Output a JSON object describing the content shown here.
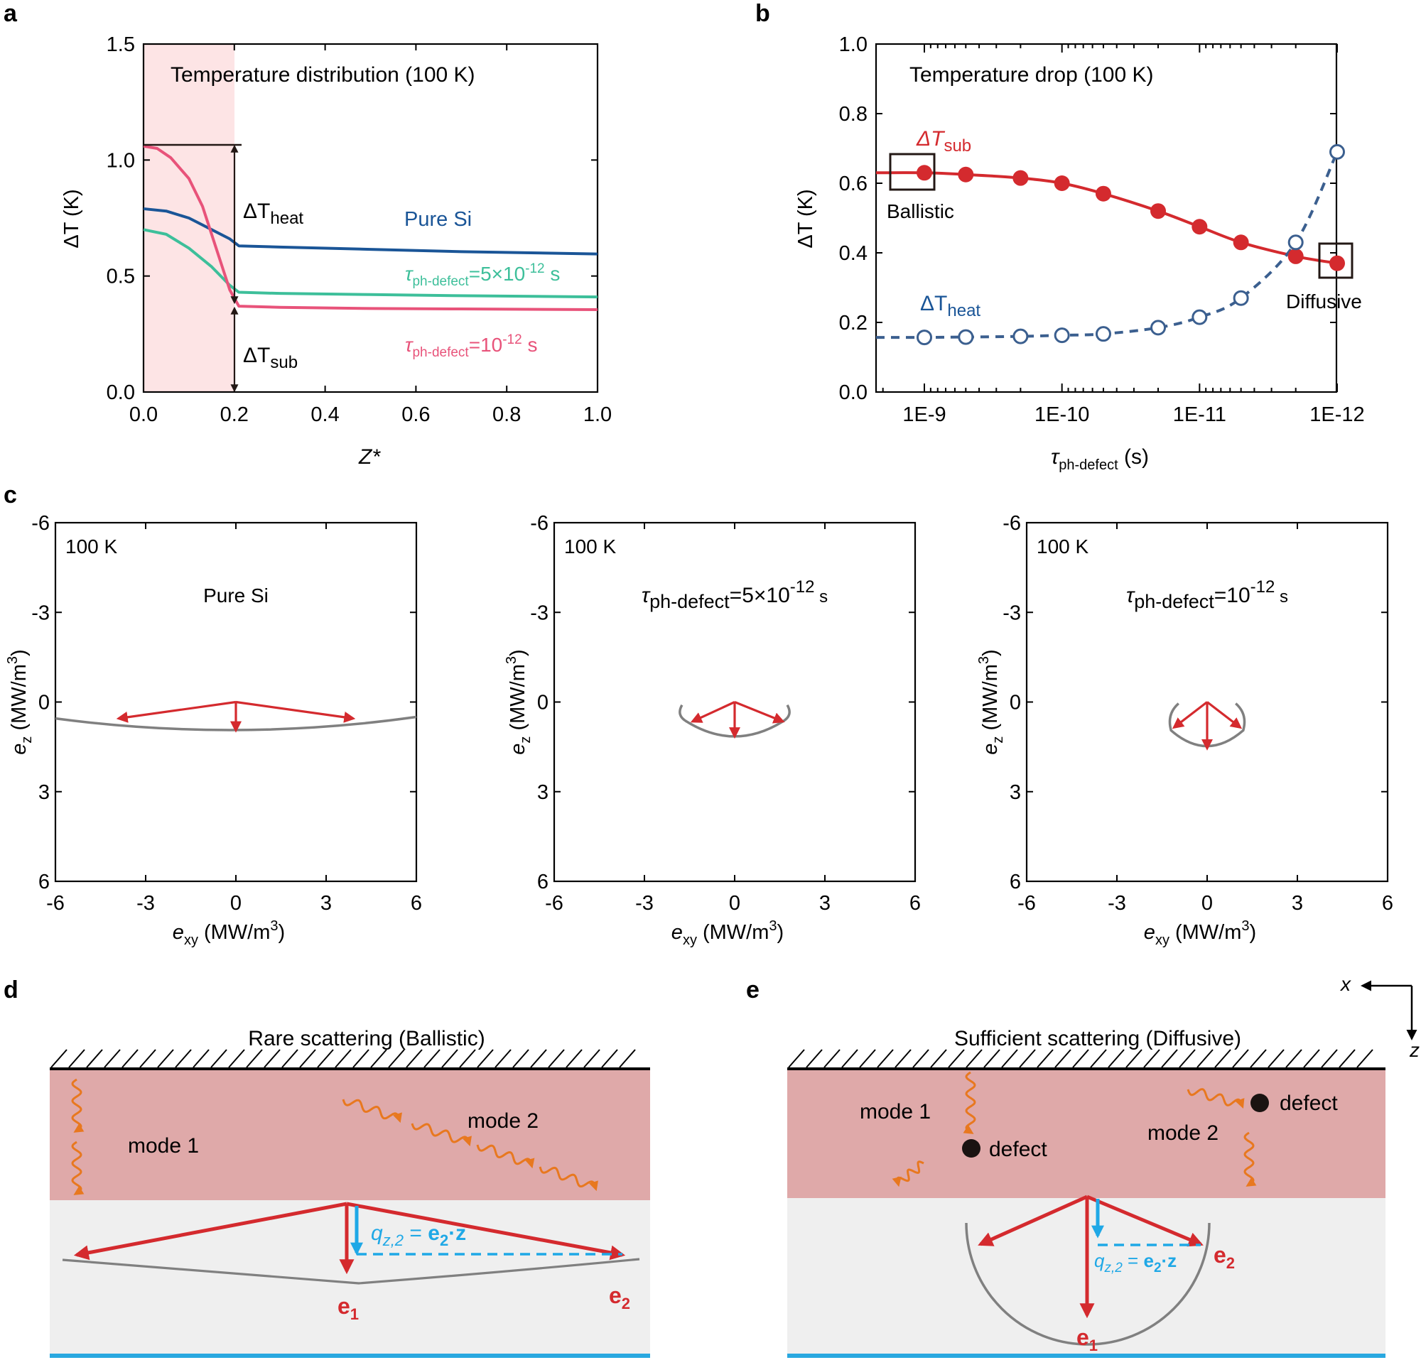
{
  "panels": {
    "a": "a",
    "b": "b",
    "c": "c",
    "d": "d",
    "e": "e"
  },
  "colors": {
    "pure_si": "#1a5597",
    "tau5": "#3dbf9a",
    "tau1": "#e8537a",
    "red": "#d42a2e",
    "blue_dash": "#3b5f8f",
    "heater": "#fde4e5",
    "layer": "#dfa9a9",
    "substrate": "#efefef",
    "bottom_line": "#29a8e0",
    "phonon": "#e8781f",
    "qz": "#1fa8e6",
    "dispersion": "#808080"
  },
  "panel_a": {
    "title": "Temperature distribution (100 K)",
    "ylabel": "ΔT (K)",
    "xlabel": "Z*",
    "xticks": [
      "0.0",
      "0.2",
      "0.4",
      "0.6",
      "0.8",
      "1.0"
    ],
    "yticks": [
      "0.0",
      "0.5",
      "1.0",
      "1.5"
    ],
    "labels": {
      "dT_heat_main": "ΔT",
      "dT_heat_sub": "heat",
      "dT_sub_main": "ΔT",
      "dT_sub_sub": "sub",
      "pure_si": "Pure Si",
      "tau5_main": "τ",
      "tau5_sub": "ph-defect",
      "tau5_mid": "=5×10",
      "tau5_exp": "-12",
      "tau5_unit": " s",
      "tau1_main": "τ",
      "tau1_sub": "ph-defect",
      "tau1_mid": "=10",
      "tau1_exp": "-12",
      "tau1_unit": " s"
    }
  },
  "panel_b": {
    "title": "Temperature drop (100 K)",
    "ylabel": "ΔT (K)",
    "xlabel_main": "τ",
    "xlabel_sub": "ph-defect",
    "xlabel_unit": " (s)",
    "yticks": [
      "0.0",
      "0.2",
      "0.4",
      "0.6",
      "0.8",
      "1.0"
    ],
    "xticks": [
      "1E-9",
      "1E-10",
      "1E-11",
      "1E-12"
    ],
    "labels": {
      "dT_sub_main": "ΔT",
      "dT_sub_sub": "sub",
      "dT_heat_main": "ΔT",
      "dT_heat_sub": "heat",
      "ballistic": "Ballistic",
      "diffusive": "Diffusive"
    }
  },
  "chart_data": [
    {
      "type": "line",
      "title": "Temperature distribution (100 K)",
      "xlabel": "Z*",
      "ylabel": "ΔT (K)",
      "xlim": [
        0,
        1
      ],
      "ylim": [
        0,
        1.5
      ],
      "series": [
        {
          "name": "Pure Si",
          "x": [
            0,
            0.05,
            0.1,
            0.15,
            0.19,
            0.21,
            0.3,
            0.5,
            0.7,
            1.0
          ],
          "values": [
            0.79,
            0.78,
            0.75,
            0.7,
            0.66,
            0.63,
            0.625,
            0.615,
            0.605,
            0.595
          ]
        },
        {
          "name": "τph-defect=5×10-12 s",
          "x": [
            0,
            0.05,
            0.1,
            0.15,
            0.19,
            0.21,
            0.3,
            0.5,
            0.7,
            1.0
          ],
          "values": [
            0.7,
            0.68,
            0.62,
            0.54,
            0.46,
            0.43,
            0.425,
            0.42,
            0.415,
            0.41
          ]
        },
        {
          "name": "τph-defect=10-12 s",
          "x": [
            0,
            0.03,
            0.06,
            0.1,
            0.13,
            0.16,
            0.19,
            0.21,
            0.3,
            0.5,
            0.7,
            1.0
          ],
          "values": [
            1.06,
            1.05,
            1.01,
            0.92,
            0.8,
            0.62,
            0.44,
            0.37,
            0.365,
            0.36,
            0.358,
            0.355
          ]
        }
      ]
    },
    {
      "type": "line",
      "title": "Temperature drop (100 K)",
      "xlabel": "τph-defect (s)",
      "ylabel": "ΔT (K)",
      "xscale": "log-reversed",
      "ylim": [
        0,
        1.0
      ],
      "series": [
        {
          "name": "ΔTsub",
          "x": [
            1e-09,
            5e-10,
            2e-10,
            1e-10,
            5e-11,
            2e-11,
            1e-11,
            5e-12,
            2e-12,
            1e-12
          ],
          "values": [
            0.63,
            0.625,
            0.615,
            0.6,
            0.57,
            0.52,
            0.475,
            0.43,
            0.39,
            0.37
          ]
        },
        {
          "name": "ΔTheat",
          "x": [
            1e-09,
            5e-10,
            2e-10,
            1e-10,
            5e-11,
            2e-11,
            1e-11,
            5e-12,
            2e-12,
            1e-12
          ],
          "values": [
            0.157,
            0.158,
            0.16,
            0.163,
            0.167,
            0.185,
            0.215,
            0.27,
            0.43,
            0.69
          ]
        }
      ]
    }
  ],
  "panel_c": {
    "xlabel_main": "e",
    "xlabel_sub": "xy",
    "xlabel_unit": " (MW/m",
    "xlabel_exp": "3",
    "xlabel_close": ")",
    "ylabel_main": "e",
    "ylabel_sub": "z",
    "ylabel_unit": " (MW/m",
    "ylabel_exp": "3",
    "ylabel_close": ")",
    "xticks": [
      "-6",
      "-3",
      "0",
      "3",
      "6"
    ],
    "yticks": [
      "-6",
      "-3",
      "0",
      "3",
      "6"
    ],
    "plots": [
      {
        "temp": "100 K",
        "label_plain": "Pure Si"
      },
      {
        "temp": "100 K",
        "label_main": "τ",
        "label_sub": "ph-defect",
        "label_mid": "=5×10",
        "label_exp": "-12",
        "label_unit": " s"
      },
      {
        "temp": "100 K",
        "label_main": "τ",
        "label_sub": "ph-defect",
        "label_mid": "=10",
        "label_exp": "-12",
        "label_unit": " s"
      }
    ]
  },
  "panel_d": {
    "title": "Rare scattering (Ballistic)",
    "mode1": "mode 1",
    "mode2": "mode 2",
    "qz_main": "q",
    "qz_sub": "z,2",
    "qz_eq": " = ",
    "qz_e": "e",
    "qz_e_sub": "2",
    "qz_dot": "·z",
    "e1": "e",
    "e1_sub": "1",
    "e2": "e",
    "e2_sub": "2"
  },
  "panel_e": {
    "title": "Sufficient scattering (Diffusive)",
    "mode1": "mode 1",
    "mode2": "mode 2",
    "defect1": "defect",
    "defect2": "defect",
    "qz_main": "q",
    "qz_sub": "z,2",
    "qz_eq": " = ",
    "qz_e": "e",
    "qz_e_sub": "2",
    "qz_dot": "·z",
    "e1": "e",
    "e1_sub": "1",
    "e2": "e",
    "e2_sub": "2",
    "axis_x": "x",
    "axis_z": "z"
  }
}
